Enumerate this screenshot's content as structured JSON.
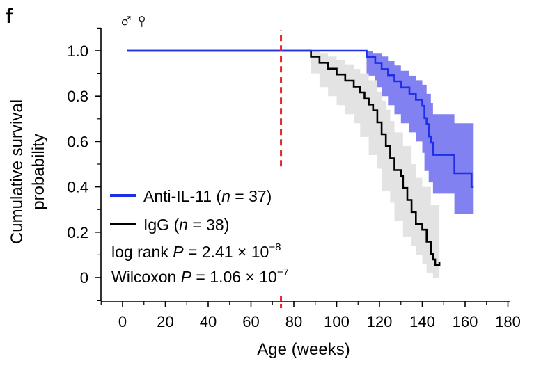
{
  "panel_label": "f",
  "sex_symbols": "♂♀",
  "chart_data": {
    "type": "line",
    "subtype": "kaplan-meier survival curve with confidence bands",
    "xlabel": "Age (weeks)",
    "ylabel_line1": "Cumulative survival",
    "ylabel_line2": "probability",
    "xlim": [
      -10,
      180
    ],
    "ylim": [
      -0.1,
      1.1
    ],
    "x_ticks": [
      0,
      20,
      40,
      60,
      80,
      100,
      120,
      140,
      160,
      180
    ],
    "y_ticks": [
      0,
      0.2,
      0.4,
      0.6,
      0.8,
      1.0
    ],
    "y_tick_labels": [
      "0",
      "0.2",
      "0.4",
      "0.6",
      "0.8",
      "1.0"
    ],
    "marker_line": {
      "x": 74,
      "y_range": [
        0.49,
        1.09
      ],
      "color": "#e0282f",
      "style": "dashed"
    },
    "legend_position": "lower-left",
    "series": [
      {
        "name_main": "Anti-IL-11  (",
        "name_n": "n",
        "name_rest": " = 37)",
        "color": "#1f2fe6",
        "band_color": "#6b6bf0",
        "steps": [
          [
            2,
            1.0
          ],
          [
            114,
            1.0
          ],
          [
            114,
            0.973
          ],
          [
            118,
            0.973
          ],
          [
            118,
            0.946
          ],
          [
            121,
            0.946
          ],
          [
            121,
            0.919
          ],
          [
            124,
            0.919
          ],
          [
            124,
            0.892
          ],
          [
            127,
            0.892
          ],
          [
            127,
            0.865
          ],
          [
            130,
            0.865
          ],
          [
            130,
            0.838
          ],
          [
            134,
            0.838
          ],
          [
            134,
            0.811
          ],
          [
            137,
            0.811
          ],
          [
            137,
            0.784
          ],
          [
            140,
            0.784
          ],
          [
            140,
            0.757
          ],
          [
            141,
            0.757
          ],
          [
            141,
            0.703
          ],
          [
            142,
            0.703
          ],
          [
            142,
            0.676
          ],
          [
            143,
            0.676
          ],
          [
            143,
            0.622
          ],
          [
            144,
            0.622
          ],
          [
            144,
            0.595
          ],
          [
            145,
            0.595
          ],
          [
            145,
            0.541
          ],
          [
            155,
            0.541
          ],
          [
            155,
            0.46
          ],
          [
            163,
            0.46
          ],
          [
            163,
            0.4
          ],
          [
            164,
            0.4
          ]
        ],
        "upper": [
          [
            114,
            1.0
          ],
          [
            117,
            1.0
          ],
          [
            117,
            0.99
          ],
          [
            121,
            0.99
          ],
          [
            121,
            0.975
          ],
          [
            124,
            0.975
          ],
          [
            124,
            0.955
          ],
          [
            127,
            0.955
          ],
          [
            127,
            0.935
          ],
          [
            130,
            0.935
          ],
          [
            130,
            0.912
          ],
          [
            134,
            0.912
          ],
          [
            134,
            0.89
          ],
          [
            137,
            0.89
          ],
          [
            137,
            0.87
          ],
          [
            140,
            0.87
          ],
          [
            140,
            0.85
          ],
          [
            142,
            0.85
          ],
          [
            142,
            0.81
          ],
          [
            144,
            0.81
          ],
          [
            144,
            0.77
          ],
          [
            145,
            0.77
          ],
          [
            145,
            0.72
          ],
          [
            155,
            0.72
          ],
          [
            155,
            0.68
          ],
          [
            164,
            0.68
          ]
        ],
        "lower": [
          [
            164,
            0.18
          ],
          [
            164,
            0.28
          ],
          [
            163,
            0.28
          ],
          [
            163,
            0.28
          ],
          [
            155,
            0.28
          ],
          [
            155,
            0.37
          ],
          [
            145,
            0.37
          ],
          [
            145,
            0.42
          ],
          [
            143,
            0.42
          ],
          [
            143,
            0.47
          ],
          [
            141,
            0.47
          ],
          [
            141,
            0.55
          ],
          [
            140,
            0.55
          ],
          [
            140,
            0.6
          ],
          [
            137,
            0.6
          ],
          [
            137,
            0.64
          ],
          [
            134,
            0.64
          ],
          [
            134,
            0.68
          ],
          [
            130,
            0.68
          ],
          [
            130,
            0.72
          ],
          [
            127,
            0.72
          ],
          [
            127,
            0.76
          ],
          [
            124,
            0.76
          ],
          [
            124,
            0.8
          ],
          [
            121,
            0.8
          ],
          [
            121,
            0.84
          ],
          [
            118,
            0.84
          ],
          [
            118,
            0.89
          ],
          [
            114,
            0.89
          ],
          [
            114,
            1.0
          ]
        ]
      },
      {
        "name_main": "IgG (",
        "name_n": "n",
        "name_rest": " = 38)",
        "color": "#000000",
        "band_color": "#e3e3e3",
        "steps": [
          [
            2,
            1.0
          ],
          [
            88,
            1.0
          ],
          [
            88,
            0.974
          ],
          [
            92,
            0.974
          ],
          [
            92,
            0.947
          ],
          [
            96,
            0.947
          ],
          [
            96,
            0.921
          ],
          [
            100,
            0.921
          ],
          [
            100,
            0.895
          ],
          [
            104,
            0.895
          ],
          [
            104,
            0.868
          ],
          [
            108,
            0.868
          ],
          [
            108,
            0.842
          ],
          [
            111,
            0.842
          ],
          [
            111,
            0.816
          ],
          [
            113,
            0.816
          ],
          [
            113,
            0.789
          ],
          [
            115,
            0.789
          ],
          [
            115,
            0.763
          ],
          [
            117,
            0.763
          ],
          [
            117,
            0.737
          ],
          [
            119,
            0.737
          ],
          [
            119,
            0.684
          ],
          [
            121,
            0.684
          ],
          [
            121,
            0.632
          ],
          [
            123,
            0.632
          ],
          [
            123,
            0.579
          ],
          [
            125,
            0.579
          ],
          [
            125,
            0.526
          ],
          [
            127,
            0.526
          ],
          [
            127,
            0.474
          ],
          [
            130,
            0.474
          ],
          [
            130,
            0.447
          ],
          [
            131,
            0.447
          ],
          [
            131,
            0.395
          ],
          [
            133,
            0.395
          ],
          [
            133,
            0.342
          ],
          [
            135,
            0.342
          ],
          [
            135,
            0.289
          ],
          [
            137,
            0.289
          ],
          [
            137,
            0.237
          ],
          [
            140,
            0.237
          ],
          [
            140,
            0.211
          ],
          [
            142,
            0.211
          ],
          [
            142,
            0.158
          ],
          [
            144,
            0.158
          ],
          [
            144,
            0.105
          ],
          [
            145,
            0.105
          ],
          [
            145,
            0.08
          ],
          [
            146,
            0.08
          ],
          [
            146,
            0.055
          ],
          [
            148,
            0.055
          ],
          [
            148,
            0.07
          ]
        ],
        "upper": [
          [
            88,
            1.0
          ],
          [
            92,
            1.0
          ],
          [
            92,
            0.99
          ],
          [
            96,
            0.99
          ],
          [
            96,
            0.975
          ],
          [
            100,
            0.975
          ],
          [
            100,
            0.96
          ],
          [
            104,
            0.96
          ],
          [
            104,
            0.94
          ],
          [
            108,
            0.94
          ],
          [
            108,
            0.92
          ],
          [
            111,
            0.92
          ],
          [
            111,
            0.9
          ],
          [
            115,
            0.9
          ],
          [
            115,
            0.87
          ],
          [
            119,
            0.87
          ],
          [
            119,
            0.82
          ],
          [
            121,
            0.82
          ],
          [
            121,
            0.78
          ],
          [
            123,
            0.78
          ],
          [
            123,
            0.74
          ],
          [
            125,
            0.74
          ],
          [
            125,
            0.69
          ],
          [
            127,
            0.69
          ],
          [
            127,
            0.64
          ],
          [
            131,
            0.64
          ],
          [
            131,
            0.58
          ],
          [
            135,
            0.58
          ],
          [
            135,
            0.5
          ],
          [
            137,
            0.5
          ],
          [
            137,
            0.44
          ],
          [
            140,
            0.44
          ],
          [
            140,
            0.4
          ],
          [
            144,
            0.4
          ],
          [
            144,
            0.32
          ],
          [
            148,
            0.32
          ],
          [
            148,
            0.22
          ]
        ],
        "lower": [
          [
            148,
            0.0
          ],
          [
            145,
            0.0
          ],
          [
            145,
            0.02
          ],
          [
            142,
            0.02
          ],
          [
            142,
            0.06
          ],
          [
            140,
            0.06
          ],
          [
            140,
            0.1
          ],
          [
            137,
            0.1
          ],
          [
            137,
            0.14
          ],
          [
            135,
            0.14
          ],
          [
            135,
            0.18
          ],
          [
            131,
            0.18
          ],
          [
            131,
            0.25
          ],
          [
            127,
            0.25
          ],
          [
            127,
            0.33
          ],
          [
            125,
            0.33
          ],
          [
            125,
            0.38
          ],
          [
            121,
            0.38
          ],
          [
            121,
            0.48
          ],
          [
            119,
            0.48
          ],
          [
            119,
            0.54
          ],
          [
            115,
            0.54
          ],
          [
            115,
            0.62
          ],
          [
            111,
            0.62
          ],
          [
            111,
            0.68
          ],
          [
            108,
            0.68
          ],
          [
            108,
            0.72
          ],
          [
            104,
            0.72
          ],
          [
            104,
            0.76
          ],
          [
            100,
            0.76
          ],
          [
            100,
            0.8
          ],
          [
            96,
            0.8
          ],
          [
            96,
            0.84
          ],
          [
            92,
            0.84
          ],
          [
            92,
            0.9
          ],
          [
            88,
            0.9
          ],
          [
            88,
            1.0
          ]
        ]
      }
    ],
    "stats_line1_prefix": "log rank ",
    "stats_line1_P": "P",
    "stats_line1_value": " = 2.41 × 10",
    "stats_line1_exp": "−8",
    "stats_line2_prefix": "Wilcoxon ",
    "stats_line2_P": "P",
    "stats_line2_value": " = 1.06 × 10",
    "stats_line2_exp": "−7"
  }
}
